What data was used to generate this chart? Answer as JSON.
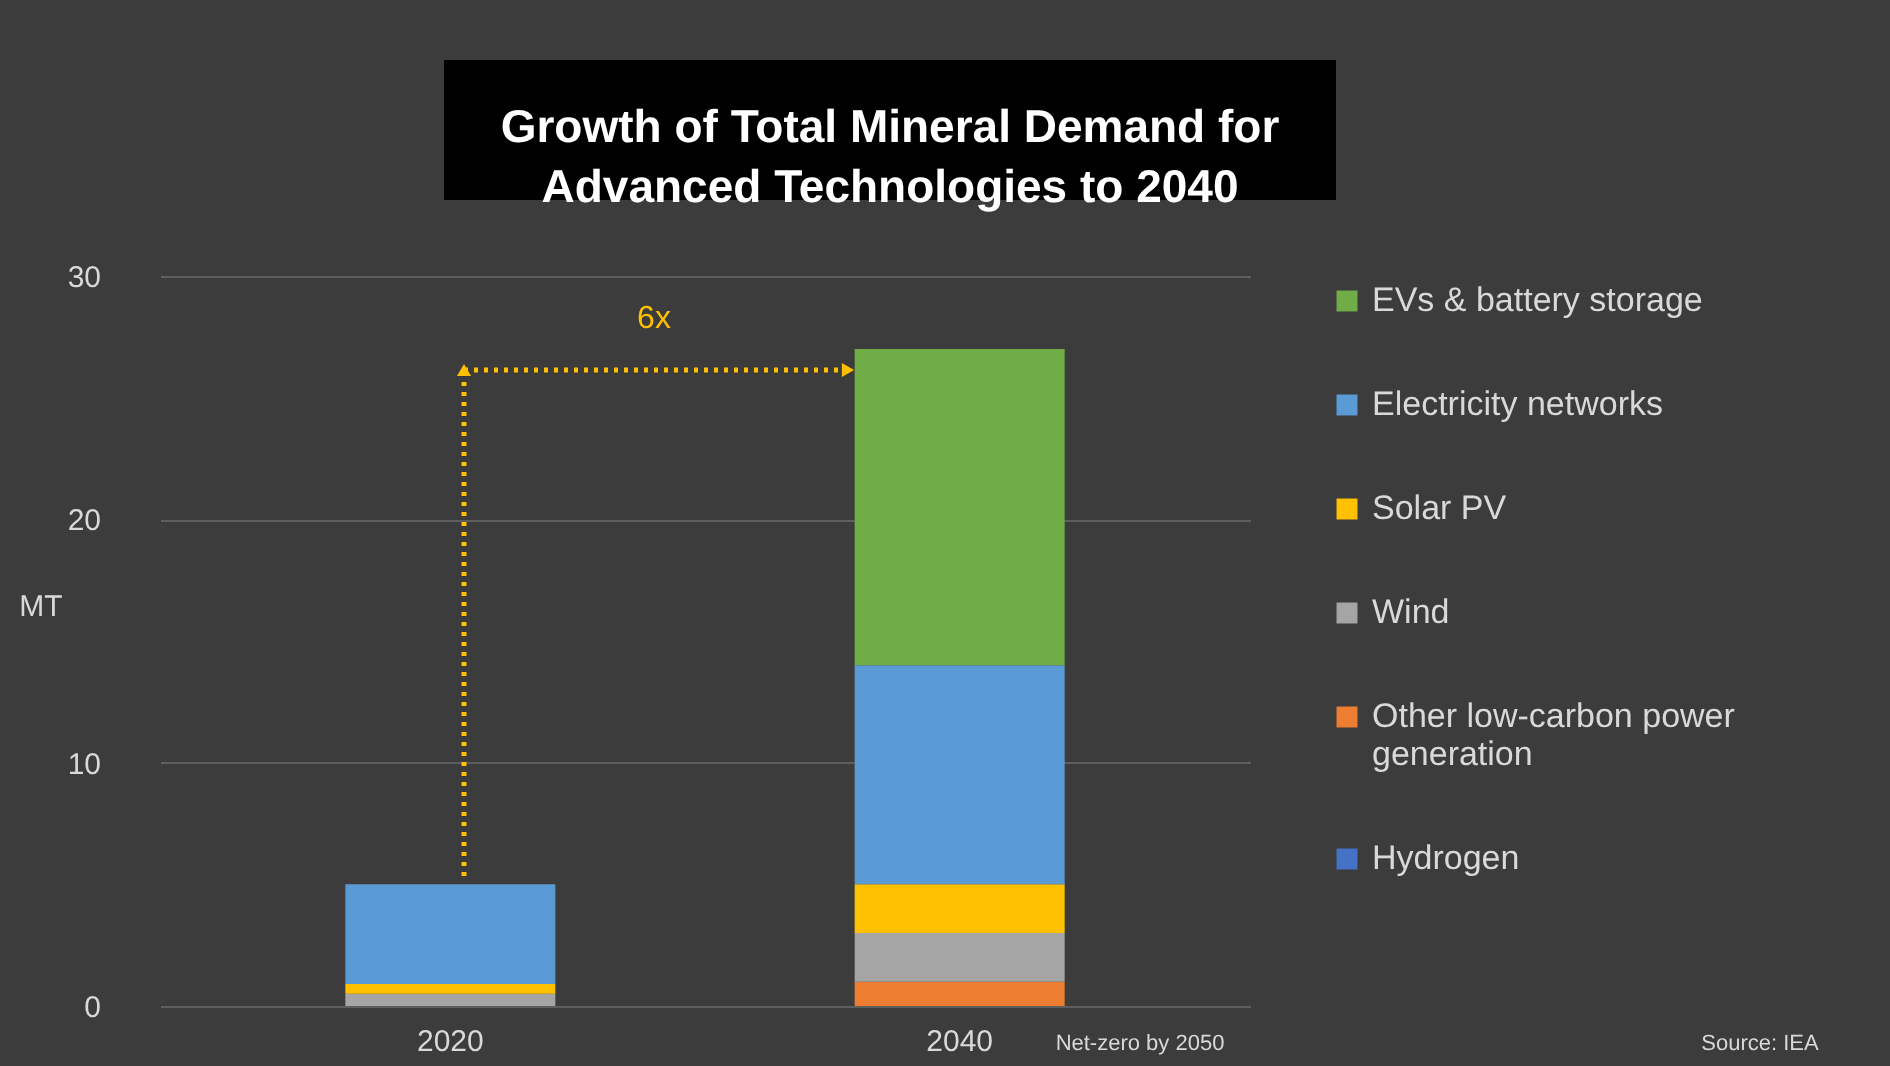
{
  "chart_data": {
    "type": "bar",
    "title": "Growth of Total Mineral Demand for\nAdvanced Technologies to 2040",
    "ylabel": "MT",
    "categories": [
      "2020",
      "2040"
    ],
    "stacked": true,
    "series": [
      {
        "name": "Hydrogen",
        "color": "#4472c4",
        "values": [
          0,
          0
        ]
      },
      {
        "name": "Other low-carbon power generation",
        "color": "#ed7d31",
        "values": [
          0,
          1.0
        ]
      },
      {
        "name": "Wind",
        "color": "#a5a5a5",
        "values": [
          0.5,
          2.0
        ]
      },
      {
        "name": "Solar PV",
        "color": "#ffc000",
        "values": [
          0.4,
          2.0
        ]
      },
      {
        "name": "Electricity networks",
        "color": "#5b9bd5",
        "values": [
          4.1,
          9.0
        ]
      },
      {
        "name": "EVs & battery storage",
        "color": "#70ad47",
        "values": [
          0,
          13.0
        ]
      }
    ],
    "ylim": [
      0,
      30
    ],
    "yticks": [
      0,
      10,
      20,
      30
    ],
    "grid": "y",
    "legend": "right",
    "annotations": [
      "6x",
      "Net-zero by 2050",
      "Source: IEA"
    ]
  }
}
